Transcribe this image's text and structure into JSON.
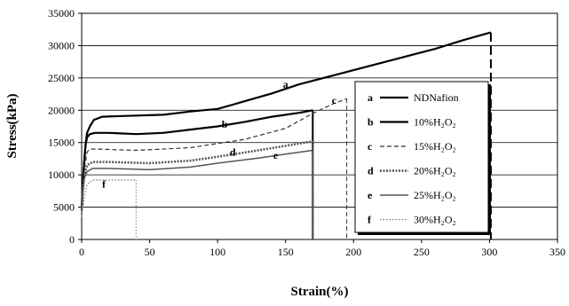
{
  "chart_data": {
    "type": "line",
    "xlabel": "Strain(%)",
    "ylabel": "Stress(kPa)",
    "xlim": [
      0,
      350
    ],
    "ylim": [
      0,
      35000
    ],
    "xticks": [
      0,
      50,
      100,
      150,
      200,
      250,
      300,
      350
    ],
    "yticks": [
      0,
      5000,
      10000,
      15000,
      20000,
      25000,
      30000,
      35000
    ],
    "grid": "horizontal",
    "legend_position": "right",
    "series": [
      {
        "key": "a",
        "name": "NDNafion",
        "style": "solid",
        "width": 2.2,
        "color": "#000000",
        "label_at": [
          148,
          23500
        ],
        "points": [
          [
            0,
            5000
          ],
          [
            1,
            9000
          ],
          [
            2,
            12500
          ],
          [
            3,
            15000
          ],
          [
            4,
            16500
          ],
          [
            6,
            17500
          ],
          [
            9,
            18500
          ],
          [
            15,
            19000
          ],
          [
            30,
            19100
          ],
          [
            60,
            19300
          ],
          [
            80,
            19800
          ],
          [
            100,
            20200
          ],
          [
            110,
            20800
          ],
          [
            120,
            21400
          ],
          [
            130,
            22000
          ],
          [
            140,
            22600
          ],
          [
            150,
            23300
          ],
          [
            160,
            24000
          ],
          [
            180,
            25100
          ],
          [
            200,
            26200
          ],
          [
            220,
            27300
          ],
          [
            240,
            28400
          ],
          [
            260,
            29500
          ],
          [
            280,
            30800
          ],
          [
            300,
            32000
          ],
          [
            301,
            32000
          ]
        ],
        "drop_at": 301
      },
      {
        "key": "b",
        "name": "10%H2O2",
        "style": "solid",
        "width": 2.2,
        "color": "#000000",
        "label_at": [
          103,
          17300
        ],
        "points": [
          [
            0,
            4800
          ],
          [
            1,
            9000
          ],
          [
            2,
            12500
          ],
          [
            3,
            14800
          ],
          [
            4,
            15800
          ],
          [
            6,
            16300
          ],
          [
            10,
            16500
          ],
          [
            20,
            16500
          ],
          [
            40,
            16300
          ],
          [
            60,
            16500
          ],
          [
            80,
            17000
          ],
          [
            100,
            17500
          ],
          [
            120,
            18200
          ],
          [
            140,
            19000
          ],
          [
            160,
            19600
          ],
          [
            170,
            20000
          ]
        ],
        "drop_at": 170
      },
      {
        "key": "c",
        "name": "15%H2O2",
        "style": "dashed",
        "width": 1.2,
        "color": "#333333",
        "label_at": [
          184,
          21000
        ],
        "points": [
          [
            0,
            4500
          ],
          [
            1,
            8500
          ],
          [
            2,
            11000
          ],
          [
            4,
            13500
          ],
          [
            6,
            14000
          ],
          [
            10,
            14000
          ],
          [
            40,
            13800
          ],
          [
            80,
            14200
          ],
          [
            120,
            15500
          ],
          [
            150,
            17200
          ],
          [
            170,
            19500
          ],
          [
            185,
            21000
          ],
          [
            195,
            21800
          ]
        ],
        "drop_at": 195
      },
      {
        "key": "d",
        "name": "20%H2O2",
        "style": "heavy-dotted",
        "width": 2.5,
        "color": "#555555",
        "label_at": [
          109,
          13000
        ],
        "points": [
          [
            0,
            4500
          ],
          [
            1,
            8000
          ],
          [
            2,
            10000
          ],
          [
            4,
            11500
          ],
          [
            8,
            12000
          ],
          [
            20,
            12000
          ],
          [
            50,
            11800
          ],
          [
            80,
            12200
          ],
          [
            100,
            12800
          ],
          [
            130,
            13800
          ],
          [
            150,
            14500
          ],
          [
            170,
            15200
          ]
        ],
        "drop_at": 170
      },
      {
        "key": "e",
        "name": "25%H2O2",
        "style": "solid",
        "width": 1.5,
        "color": "#555555",
        "label_at": [
          141,
          12500
        ],
        "points": [
          [
            0,
            4500
          ],
          [
            1,
            7500
          ],
          [
            2,
            9500
          ],
          [
            4,
            10500
          ],
          [
            8,
            11000
          ],
          [
            20,
            11000
          ],
          [
            50,
            10800
          ],
          [
            80,
            11200
          ],
          [
            100,
            11800
          ],
          [
            130,
            12600
          ],
          [
            150,
            13200
          ],
          [
            170,
            13800
          ]
        ],
        "drop_at": 170
      },
      {
        "key": "f",
        "name": "30%H2O2",
        "style": "dotted",
        "width": 1.2,
        "color": "#777777",
        "label_at": [
          15,
          8000
        ],
        "points": [
          [
            0,
            3500
          ],
          [
            2,
            6500
          ],
          [
            4,
            8500
          ],
          [
            8,
            9200
          ],
          [
            20,
            9200
          ],
          [
            40,
            9200
          ]
        ],
        "drop_at": 40
      }
    ]
  }
}
